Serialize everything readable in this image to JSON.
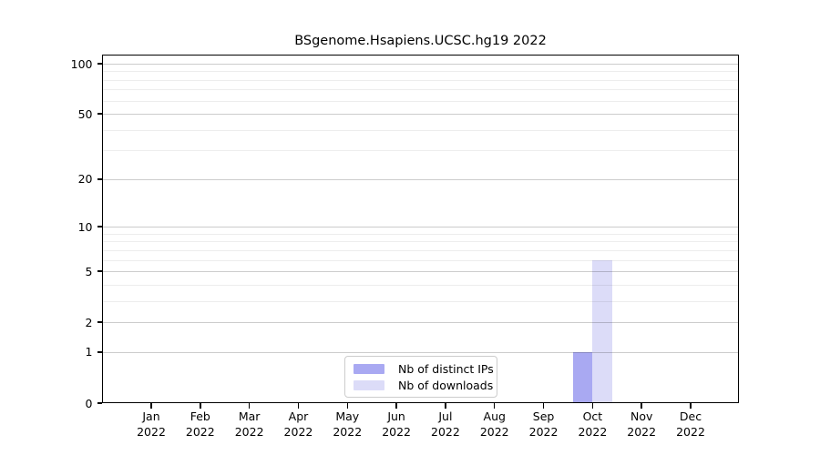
{
  "chart_data": {
    "type": "bar",
    "title": "BSgenome.Hsapiens.UCSC.hg19 2022",
    "x_ticklabels": [
      [
        "Jan",
        "2022"
      ],
      [
        "Feb",
        "2022"
      ],
      [
        "Mar",
        "2022"
      ],
      [
        "Apr",
        "2022"
      ],
      [
        "May",
        "2022"
      ],
      [
        "Jun",
        "2022"
      ],
      [
        "Jul",
        "2022"
      ],
      [
        "Aug",
        "2022"
      ],
      [
        "Sep",
        "2022"
      ],
      [
        "Oct",
        "2022"
      ],
      [
        "Nov",
        "2022"
      ],
      [
        "Dec",
        "2022"
      ]
    ],
    "series": [
      {
        "name": "Nb of distinct IPs",
        "color": "#a9a9f2",
        "values": [
          0,
          0,
          0,
          0,
          0,
          0,
          0,
          0,
          0,
          1,
          0,
          0
        ]
      },
      {
        "name": "Nb of downloads",
        "color": "#dcdcf8",
        "values": [
          0,
          0,
          0,
          0,
          0,
          0,
          0,
          0,
          0,
          6,
          0,
          0
        ]
      }
    ],
    "y_scale": "log1p",
    "y_ticks": [
      0,
      1,
      2,
      5,
      10,
      20,
      50,
      100
    ],
    "y_minor_gridlines": [
      3,
      4,
      6,
      7,
      8,
      9,
      30,
      40,
      60,
      70,
      80,
      90
    ],
    "ylim": [
      0,
      100
    ],
    "grid": true,
    "grid_above_bars": true,
    "legend_position": "bottom-center",
    "colors": {
      "frame": "#000000",
      "text": "#000000"
    }
  }
}
